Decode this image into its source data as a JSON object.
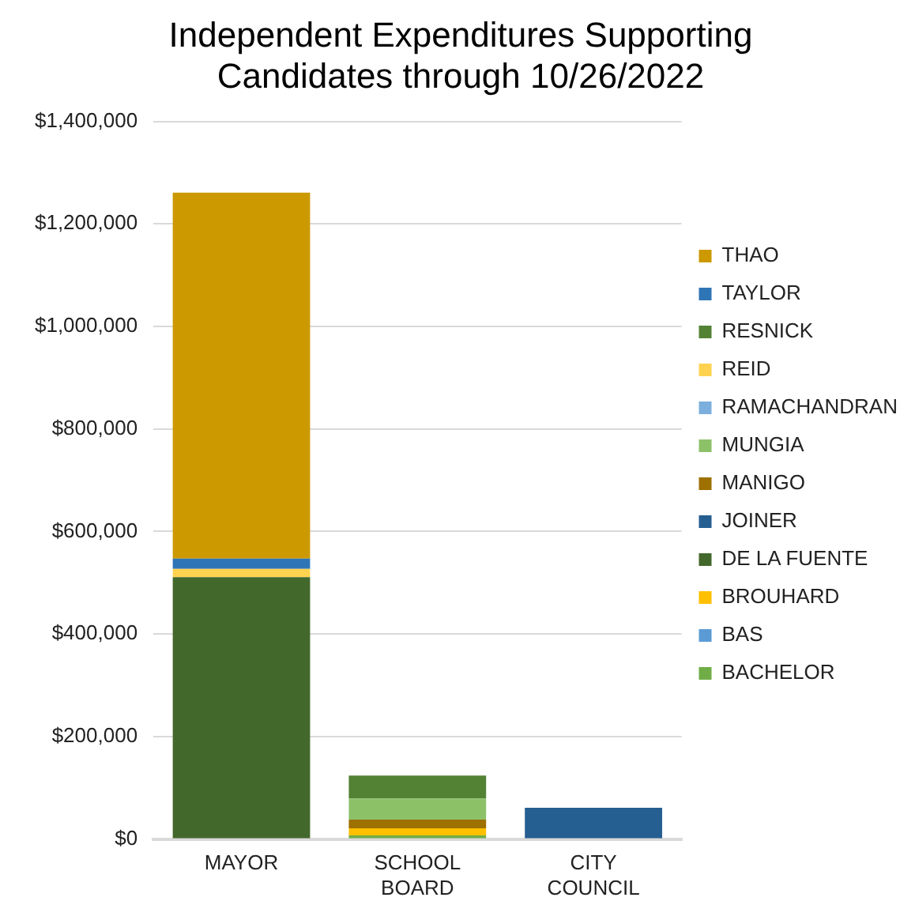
{
  "chart_data": {
    "type": "bar",
    "title": "Independent Expenditures Supporting Candidates through 10/26/2022",
    "categories": [
      "MAYOR",
      "SCHOOL BOARD",
      "CITY COUNCIL"
    ],
    "stacked": true,
    "ylim": [
      0,
      1400000
    ],
    "yticks": [
      {
        "value": 0,
        "label": "$0"
      },
      {
        "value": 200000,
        "label": "$200,000"
      },
      {
        "value": 400000,
        "label": "$400,000"
      },
      {
        "value": 600000,
        "label": "$600,000"
      },
      {
        "value": 800000,
        "label": "$800,000"
      },
      {
        "value": 1000000,
        "label": "$1,000,000"
      },
      {
        "value": 1200000,
        "label": "$1,200,000"
      },
      {
        "value": 1400000,
        "label": "$1,400,000"
      }
    ],
    "grid": "y",
    "legend": "right",
    "series": [
      {
        "name": "BACHELOR",
        "color": "#70ad47",
        "values": [
          null,
          7000,
          null
        ]
      },
      {
        "name": "BAS",
        "color": "#5b9bd5",
        "values": [
          null,
          null,
          null
        ]
      },
      {
        "name": "BROUHARD",
        "color": "#ffc000",
        "values": [
          null,
          14000,
          null
        ]
      },
      {
        "name": "DE LA FUENTE",
        "color": "#43682b",
        "values": [
          511000,
          null,
          null
        ]
      },
      {
        "name": "JOINER",
        "color": "#255e91",
        "values": [
          null,
          null,
          61000
        ]
      },
      {
        "name": "MANIGO",
        "color": "#9e7000",
        "values": [
          null,
          17000,
          null
        ]
      },
      {
        "name": "MUNGIA",
        "color": "#8cc168",
        "values": [
          null,
          41000,
          null
        ]
      },
      {
        "name": "RAMACHANDRAN",
        "color": "#7cafdd",
        "values": [
          null,
          null,
          null
        ]
      },
      {
        "name": "REID",
        "color": "#ffd34f",
        "values": [
          16000,
          null,
          null
        ]
      },
      {
        "name": "RESNICK",
        "color": "#548235",
        "values": [
          null,
          45000,
          null
        ]
      },
      {
        "name": "TAYLOR",
        "color": "#2e75b6",
        "values": [
          20000,
          null,
          null
        ]
      },
      {
        "name": "THAO",
        "color": "#cc9900",
        "values": [
          714000,
          null,
          null
        ]
      }
    ]
  }
}
